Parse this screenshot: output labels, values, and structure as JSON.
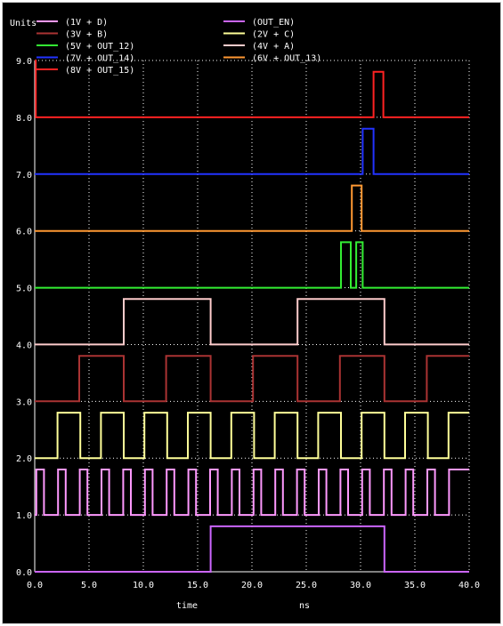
{
  "chart_data": {
    "type": "line",
    "title": "",
    "ylabel": "Units",
    "xlabel": "time",
    "xunit": "ns",
    "xlim": [
      0,
      40
    ],
    "ylim": [
      0,
      9
    ],
    "xticks": [
      0,
      5,
      10,
      15,
      20,
      25,
      30,
      35,
      40
    ],
    "xtick_labels": [
      "0.0",
      "5.0",
      "10.0",
      "15.0",
      "20.0",
      "25.0",
      "30.0",
      "35.0",
      "40.0"
    ],
    "yticks": [
      0,
      1,
      2,
      3,
      4,
      5,
      6,
      7,
      8,
      9
    ],
    "ytick_labels": [
      "0.0",
      "1.0",
      "2.0",
      "3.0",
      "4.0",
      "5.0",
      "6.0",
      "7.0",
      "8.0",
      "9.0"
    ],
    "grid": true,
    "legend_placement": "top",
    "series": [
      {
        "name": "(1V + D)",
        "color": "#ff99ff",
        "low": 1.0,
        "high": 1.8,
        "x": [
          0,
          0.15,
          0.15,
          0.85,
          0.85,
          2.15,
          2.15,
          2.85,
          2.85,
          4.15,
          4.15,
          4.85,
          4.85,
          6.15,
          6.15,
          6.85,
          6.85,
          8.15,
          8.15,
          8.85,
          8.85,
          10.15,
          10.15,
          10.85,
          10.85,
          12.15,
          12.15,
          12.85,
          12.85,
          14.15,
          14.15,
          14.85,
          14.85,
          16.15,
          16.15,
          16.85,
          16.85,
          18.15,
          18.15,
          18.85,
          18.85,
          20.15,
          20.15,
          20.85,
          20.85,
          22.15,
          22.15,
          22.85,
          22.85,
          24.15,
          24.15,
          24.85,
          24.85,
          26.15,
          26.15,
          26.85,
          26.85,
          28.15,
          28.15,
          28.85,
          28.85,
          30.15,
          30.15,
          30.85,
          30.85,
          32.15,
          32.15,
          32.85,
          32.85,
          34.15,
          34.15,
          34.85,
          34.85,
          36.15,
          36.15,
          36.85,
          36.85,
          38.15,
          38.15,
          38.85,
          38.85,
          40
        ],
        "y": [
          1.0,
          1.0,
          1.8,
          1.8,
          1.0,
          1.0,
          1.8,
          1.8,
          1.0,
          1.0,
          1.8,
          1.8,
          1.0,
          1.0,
          1.8,
          1.8,
          1.0,
          1.0,
          1.8,
          1.8,
          1.0,
          1.0,
          1.8,
          1.8,
          1.0,
          1.0,
          1.8,
          1.8,
          1.0,
          1.0,
          1.8,
          1.8,
          1.0,
          1.0,
          1.8,
          1.8,
          1.0,
          1.0,
          1.8,
          1.8,
          1.0,
          1.0,
          1.8,
          1.8,
          1.0,
          1.0,
          1.8,
          1.8,
          1.0,
          1.0,
          1.8,
          1.8,
          1.0,
          1.0,
          1.8,
          1.8,
          1.0,
          1.0,
          1.8,
          1.8,
          1.0,
          1.0,
          1.8,
          1.8,
          1.0,
          1.0,
          1.8,
          1.8,
          1.0,
          1.0,
          1.8,
          1.8,
          1.0,
          1.0,
          1.8,
          1.8,
          1.0,
          1.0,
          1.8,
          1.8,
          1.8,
          1.8
        ]
      },
      {
        "name": "(OUT_EN)",
        "color": "#cc66ff",
        "x": [
          0,
          16.2,
          16.2,
          32.2,
          32.2,
          40
        ],
        "y": [
          0.0,
          0.0,
          0.8,
          0.8,
          0.0,
          0.0
        ]
      },
      {
        "name": "(3V + B)",
        "color": "#aa3333",
        "x": [
          0,
          4.1,
          4.1,
          8.2,
          8.2,
          12.1,
          12.1,
          16.2,
          16.2,
          20.1,
          20.1,
          24.2,
          24.2,
          28.1,
          28.1,
          32.2,
          32.2,
          36.1,
          36.1,
          40
        ],
        "y": [
          3.0,
          3.0,
          3.8,
          3.8,
          3.0,
          3.0,
          3.8,
          3.8,
          3.0,
          3.0,
          3.8,
          3.8,
          3.0,
          3.0,
          3.8,
          3.8,
          3.0,
          3.0,
          3.8,
          3.8
        ]
      },
      {
        "name": "(2V + C)",
        "color": "#ffff99",
        "x": [
          0,
          2.1,
          2.1,
          4.2,
          4.2,
          6.1,
          6.1,
          8.2,
          8.2,
          10.1,
          10.1,
          12.2,
          12.2,
          14.1,
          14.1,
          16.2,
          16.2,
          18.1,
          18.1,
          20.2,
          20.2,
          22.1,
          22.1,
          24.2,
          24.2,
          26.1,
          26.1,
          28.2,
          28.2,
          30.1,
          30.1,
          32.2,
          32.2,
          34.1,
          34.1,
          36.2,
          36.2,
          38.1,
          38.1,
          40
        ],
        "y": [
          2.0,
          2.0,
          2.8,
          2.8,
          2.0,
          2.0,
          2.8,
          2.8,
          2.0,
          2.0,
          2.8,
          2.8,
          2.0,
          2.0,
          2.8,
          2.8,
          2.0,
          2.0,
          2.8,
          2.8,
          2.0,
          2.0,
          2.8,
          2.8,
          2.0,
          2.0,
          2.8,
          2.8,
          2.0,
          2.0,
          2.8,
          2.8,
          2.0,
          2.0,
          2.8,
          2.8,
          2.0,
          2.0,
          2.8,
          2.8
        ]
      },
      {
        "name": "(5V + OUT_12)",
        "color": "#33ee33",
        "x": [
          0,
          28.2,
          28.2,
          29.1,
          29.1,
          29.6,
          29.6,
          30.2,
          30.2,
          40
        ],
        "y": [
          5.0,
          5.0,
          5.8,
          5.8,
          5.0,
          5.0,
          5.8,
          5.8,
          5.0,
          5.0
        ]
      },
      {
        "name": "(4V + A)",
        "color": "#ffcccc",
        "x": [
          0,
          8.2,
          8.2,
          16.2,
          16.2,
          24.2,
          24.2,
          32.2,
          32.2,
          40
        ],
        "y": [
          4.0,
          4.0,
          4.8,
          4.8,
          4.0,
          4.0,
          4.8,
          4.8,
          4.0,
          4.0
        ]
      },
      {
        "name": "(7V + OUT_14)",
        "color": "#2233ff",
        "x": [
          0,
          30.2,
          30.2,
          31.2,
          31.2,
          40
        ],
        "y": [
          7.0,
          7.0,
          7.8,
          7.8,
          7.0,
          7.0
        ]
      },
      {
        "name": "(6V + OUT_13)",
        "color": "#ff9933",
        "x": [
          0,
          29.2,
          29.2,
          30.1,
          30.1,
          40
        ],
        "y": [
          6.0,
          6.0,
          6.8,
          6.8,
          6.0,
          6.0
        ]
      },
      {
        "name": "(8V + OUT_15)",
        "color": "#ff2222",
        "x": [
          0,
          0.1,
          0.1,
          31.2,
          31.2,
          32.1,
          32.1,
          40
        ],
        "y": [
          9.0,
          9.0,
          8.0,
          8.0,
          8.8,
          8.8,
          8.0,
          8.0
        ]
      }
    ]
  }
}
